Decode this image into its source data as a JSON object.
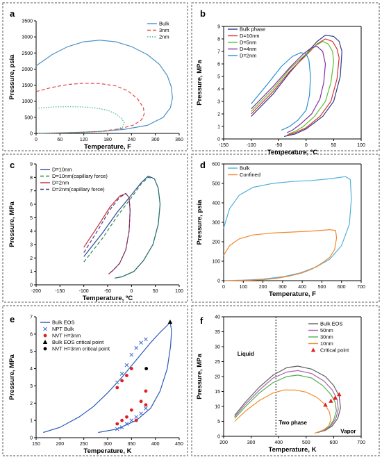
{
  "chart_data": [
    {
      "panel_label": "a",
      "type": "line",
      "xlabel": "Temperature, F",
      "ylabel": "Pressure, psia",
      "xlim": [
        0,
        360
      ],
      "ylim": [
        0,
        3500
      ],
      "xticks": [
        0,
        60,
        120,
        180,
        240,
        300,
        360
      ],
      "yticks": [
        0,
        500,
        1000,
        1500,
        2000,
        2500,
        3000,
        3500
      ],
      "legend_position": "top-right",
      "series": [
        {
          "name": "Bulk",
          "color": "#4a90c8",
          "dash": "solid",
          "x": [
            0,
            40,
            80,
            120,
            160,
            200,
            240,
            280,
            310,
            330,
            340,
            343,
            338,
            320,
            280,
            220,
            160,
            100,
            50,
            20,
            5
          ],
          "y": [
            2100,
            2450,
            2700,
            2850,
            2900,
            2850,
            2700,
            2450,
            2150,
            1800,
            1450,
            1100,
            800,
            500,
            250,
            120,
            60,
            30,
            15,
            8,
            5
          ]
        },
        {
          "name": "3nm",
          "color": "#e04848",
          "dash": "dashed",
          "x": [
            0,
            40,
            80,
            120,
            160,
            200,
            230,
            255,
            270,
            272,
            265,
            245,
            210,
            160,
            100,
            50,
            5
          ],
          "y": [
            1300,
            1430,
            1520,
            1560,
            1550,
            1480,
            1330,
            1080,
            800,
            600,
            420,
            260,
            140,
            60,
            25,
            10,
            5
          ]
        },
        {
          "name": "2nm",
          "color": "#40b890",
          "dash": "dotted",
          "x": [
            0,
            40,
            80,
            120,
            150,
            180,
            200,
            215,
            222,
            218,
            200,
            170,
            120,
            60,
            5
          ],
          "y": [
            780,
            820,
            830,
            820,
            790,
            720,
            610,
            470,
            330,
            200,
            110,
            55,
            25,
            10,
            5
          ]
        }
      ]
    },
    {
      "panel_label": "b",
      "type": "line",
      "xlabel": "Temperature, ºC",
      "ylabel": "Pressure, MPa",
      "xlim": [
        -150,
        100
      ],
      "ylim": [
        0,
        9
      ],
      "xticks": [
        -150,
        -100,
        -50,
        0,
        50,
        100
      ],
      "yticks": [
        0,
        1,
        2,
        3,
        4,
        5,
        6,
        7,
        8,
        9
      ],
      "legend_position": "top-left",
      "series": [
        {
          "name": "Bulk phase",
          "color": "#2b3a8f",
          "dash": "solid",
          "x": [
            -100,
            -60,
            -30,
            0,
            20,
            35,
            50,
            60,
            65,
            62,
            50,
            30,
            0,
            -20,
            -40
          ],
          "y": [
            1.8,
            3.6,
            5.3,
            6.8,
            7.8,
            8.3,
            8.2,
            7.8,
            7.0,
            5.0,
            3.0,
            1.8,
            0.8,
            0.4,
            0.2
          ]
        },
        {
          "name": "D=10nm",
          "color": "#d83030",
          "dash": "solid",
          "x": [
            -100,
            -60,
            -30,
            0,
            20,
            35,
            48,
            56,
            60,
            56,
            45,
            25,
            0,
            -20,
            -35
          ],
          "y": [
            2.0,
            3.8,
            5.4,
            6.7,
            7.6,
            8.0,
            7.8,
            7.2,
            6.5,
            4.8,
            3.0,
            1.8,
            0.9,
            0.5,
            0.3
          ]
        },
        {
          "name": "D=5nm",
          "color": "#5cc030",
          "dash": "solid",
          "x": [
            -100,
            -60,
            -30,
            0,
            15,
            30,
            40,
            48,
            50,
            45,
            35,
            15,
            -5,
            -20,
            -32
          ],
          "y": [
            2.2,
            4.0,
            5.6,
            6.8,
            7.4,
            7.8,
            7.6,
            7.0,
            6.2,
            4.5,
            3.0,
            1.8,
            1.0,
            0.6,
            0.4
          ]
        },
        {
          "name": "D=4nm",
          "color": "#8030a0",
          "dash": "solid",
          "x": [
            -100,
            -60,
            -30,
            -5,
            10,
            20,
            30,
            35,
            32,
            25,
            10,
            -10,
            -25,
            -35
          ],
          "y": [
            2.4,
            4.2,
            5.7,
            6.8,
            7.3,
            7.4,
            7.0,
            6.0,
            4.5,
            3.2,
            2.0,
            1.2,
            0.7,
            0.5
          ]
        },
        {
          "name": "D=2nm",
          "color": "#2890d0",
          "dash": "solid",
          "x": [
            -100,
            -70,
            -45,
            -25,
            -10,
            0,
            5,
            8,
            6,
            0,
            -15,
            -30,
            -45
          ],
          "y": [
            2.8,
            4.4,
            5.8,
            6.6,
            6.9,
            6.8,
            6.3,
            5.0,
            3.5,
            2.3,
            1.5,
            1.0,
            0.7
          ]
        }
      ]
    },
    {
      "panel_label": "c",
      "type": "line",
      "xlabel": "Temperature, ºC",
      "ylabel": "Pressure, MPa",
      "xlim": [
        -200,
        100
      ],
      "ylim": [
        0,
        9
      ],
      "xticks": [
        -200,
        -150,
        -100,
        -50,
        0,
        50,
        100
      ],
      "yticks": [
        0,
        1,
        2,
        3,
        4,
        5,
        6,
        7,
        8,
        9
      ],
      "legend_position": "top-left",
      "series": [
        {
          "name": "D=10nm",
          "color": "#2b4aa0",
          "dash": "solid",
          "x": [
            -100,
            -60,
            -30,
            0,
            20,
            35,
            48,
            56,
            60,
            56,
            45,
            25,
            5,
            -20,
            -35
          ],
          "y": [
            2.1,
            3.9,
            5.4,
            6.7,
            7.6,
            8.1,
            7.9,
            7.2,
            6.0,
            4.5,
            3.0,
            1.8,
            1.0,
            0.6,
            0.5
          ]
        },
        {
          "name": "D=10nm(capillary force)",
          "color": "#2a8a48",
          "dash": "dashed",
          "x": [
            -100,
            -60,
            -30,
            0,
            20,
            35,
            48,
            56,
            60,
            56,
            45,
            25,
            5,
            -20,
            -35
          ],
          "y": [
            1.7,
            3.5,
            5.1,
            6.5,
            7.5,
            8.0,
            7.9,
            7.2,
            6.0,
            4.5,
            3.0,
            1.8,
            1.0,
            0.6,
            0.5
          ]
        },
        {
          "name": "D=2nm",
          "color": "#c82838",
          "dash": "solid",
          "x": [
            -100,
            -70,
            -45,
            -25,
            -12,
            -5,
            -3,
            -5,
            -12,
            -25,
            -38,
            -48
          ],
          "y": [
            2.8,
            4.4,
            5.8,
            6.6,
            6.8,
            6.5,
            5.5,
            4.0,
            2.6,
            1.6,
            1.1,
            0.8
          ]
        },
        {
          "name": "D=2nm(capillary force)",
          "color": "#4a3a8a",
          "dash": "dashed",
          "x": [
            -100,
            -70,
            -45,
            -25,
            -12,
            -5,
            -3,
            -5,
            -12,
            -25,
            -38,
            -48
          ],
          "y": [
            2.4,
            4.1,
            5.6,
            6.5,
            6.8,
            6.5,
            5.5,
            4.0,
            2.6,
            1.6,
            1.1,
            0.8
          ]
        }
      ]
    },
    {
      "panel_label": "d",
      "type": "line",
      "xlabel": "Temperature, F",
      "ylabel": "Pressure, psia",
      "xlim": [
        0,
        700
      ],
      "ylim": [
        0,
        600
      ],
      "xticks": [
        0,
        100,
        200,
        300,
        400,
        500,
        600,
        700
      ],
      "yticks": [
        0,
        100,
        200,
        300,
        400,
        500,
        600
      ],
      "legend_position": "top-left",
      "series": [
        {
          "name": "Bulk",
          "color": "#50b0d8",
          "dash": "solid",
          "x": [
            0,
            30,
            80,
            150,
            250,
            350,
            450,
            550,
            620,
            645,
            650,
            640,
            600,
            540,
            470,
            390,
            300,
            200,
            100,
            30,
            5
          ],
          "y": [
            270,
            370,
            440,
            480,
            500,
            510,
            515,
            525,
            535,
            520,
            420,
            290,
            180,
            110,
            70,
            40,
            20,
            8,
            3,
            1,
            0
          ]
        },
        {
          "name": "Confined",
          "color": "#f08830",
          "dash": "solid",
          "x": [
            0,
            30,
            80,
            150,
            250,
            350,
            450,
            540,
            570,
            575,
            565,
            540,
            500,
            450,
            400,
            340,
            270,
            200,
            130,
            60,
            10
          ],
          "y": [
            130,
            180,
            215,
            235,
            245,
            250,
            255,
            262,
            258,
            220,
            160,
            120,
            90,
            60,
            40,
            25,
            12,
            5,
            2,
            1,
            0
          ]
        }
      ]
    },
    {
      "panel_label": "e",
      "type": "scatter",
      "xlabel": "Temperature, K",
      "ylabel": "Pressure, MPa",
      "xlim": [
        150,
        450
      ],
      "ylim": [
        0,
        7
      ],
      "xticks": [
        150,
        200,
        250,
        300,
        350,
        400,
        450
      ],
      "yticks": [
        0,
        1,
        2,
        3,
        4,
        5,
        6,
        7
      ],
      "legend_position": "top-left",
      "series": [
        {
          "name": "Bulk EOS",
          "color": "#2a5ab8",
          "marker": "line",
          "x": [
            165,
            200,
            240,
            270,
            300,
            330,
            360,
            390,
            410,
            425,
            431
          ],
          "y": [
            0.3,
            0.6,
            1.2,
            1.8,
            2.6,
            3.5,
            4.5,
            5.5,
            6.1,
            6.5,
            6.7
          ]
        },
        {
          "name": "Bulk EOS",
          "color": "#2a5ab8",
          "marker": "line",
          "x": [
            280,
            320,
            360,
            390,
            410,
            425,
            432,
            434,
            431
          ],
          "y": [
            0.3,
            0.5,
            1.0,
            1.7,
            2.7,
            4.0,
            5.3,
            6.2,
            6.7
          ]
        },
        {
          "name": "NPT Bulk",
          "color": "#3a6ad0",
          "marker": "x",
          "x": [
            320,
            330,
            340,
            350,
            360,
            370,
            380,
            320,
            330,
            340,
            350,
            360,
            370,
            380
          ],
          "y": [
            3.2,
            3.7,
            4.2,
            4.8,
            5.2,
            5.5,
            5.7,
            0.5,
            0.6,
            0.8,
            1.0,
            1.2,
            1.4,
            1.7
          ]
        },
        {
          "name": "NVT H=3nm",
          "color": "#e02020",
          "marker": "circle",
          "x": [
            320,
            330,
            340,
            350,
            370,
            380,
            320,
            330,
            340,
            350,
            360,
            380
          ],
          "y": [
            2.9,
            3.3,
            3.6,
            4.0,
            2.1,
            2.7,
            0.8,
            1.0,
            1.2,
            1.6,
            1.0,
            1.9
          ]
        },
        {
          "name": "Bulk EOS critical point",
          "color": "#000000",
          "marker": "triangle",
          "x": [
            431
          ],
          "y": [
            6.7
          ]
        },
        {
          "name": "NVT H=3nm critical point",
          "color": "#000000",
          "marker": "circle",
          "x": [
            381
          ],
          "y": [
            4.0
          ]
        }
      ]
    },
    {
      "panel_label": "f",
      "type": "line",
      "xlabel": "Temperature, K",
      "ylabel": "Pressure, MPa",
      "xlim": [
        200,
        700
      ],
      "ylim": [
        0,
        40
      ],
      "xticks": [
        200,
        300,
        400,
        500,
        600,
        700
      ],
      "yticks": [
        0,
        5,
        10,
        15,
        20,
        25,
        30,
        35,
        40
      ],
      "legend_position": "top-right",
      "annotations": {
        "liquid": "Liquid",
        "two_phase": "Two phase",
        "vapor": "Vapor"
      },
      "vertical_line_x": 390,
      "series": [
        {
          "name": "Bulk EOS",
          "color": "#606060",
          "dash": "solid",
          "x": [
            240,
            280,
            330,
            380,
            430,
            470,
            520,
            570,
            600,
            620,
            625,
            615,
            595,
            570,
            540
          ],
          "y": [
            7.0,
            11.5,
            16.5,
            20.5,
            23.0,
            23.5,
            22.5,
            20.0,
            17.0,
            13.5,
            9.5,
            6.0,
            3.5,
            2.0,
            1.2
          ]
        },
        {
          "name": "50nm",
          "color": "#b060b0",
          "dash": "solid",
          "x": [
            240,
            280,
            330,
            380,
            430,
            470,
            520,
            565,
            595,
            612,
            617,
            608,
            590,
            565,
            540
          ],
          "y": [
            6.5,
            10.8,
            15.5,
            19.5,
            21.5,
            22.0,
            21.0,
            18.5,
            15.5,
            12.5,
            9.0,
            6.0,
            3.5,
            2.0,
            1.2
          ]
        },
        {
          "name": "30nm",
          "color": "#50b050",
          "dash": "solid",
          "x": [
            240,
            280,
            330,
            380,
            430,
            470,
            520,
            560,
            590,
            605,
            610,
            600,
            585,
            560,
            540
          ],
          "y": [
            6.0,
            10.0,
            14.5,
            18.0,
            20.0,
            20.5,
            19.5,
            17.0,
            14.0,
            11.5,
            8.5,
            5.5,
            3.3,
            2.0,
            1.2
          ]
        },
        {
          "name": "10nm",
          "color": "#f09030",
          "dash": "solid",
          "x": [
            240,
            280,
            330,
            380,
            420,
            460,
            500,
            540,
            570,
            585,
            590,
            582,
            565,
            545,
            530
          ],
          "y": [
            5.0,
            8.5,
            12.0,
            14.5,
            15.5,
            15.5,
            14.8,
            13.0,
            10.5,
            8.0,
            5.5,
            3.5,
            2.2,
            1.5,
            1.0
          ]
        },
        {
          "name": "Critical point",
          "color": "#e02020",
          "marker": "triangle",
          "x": [
            570,
            590,
            605,
            620
          ],
          "y": [
            10.5,
            11.8,
            12.8,
            14.0
          ]
        }
      ]
    }
  ]
}
